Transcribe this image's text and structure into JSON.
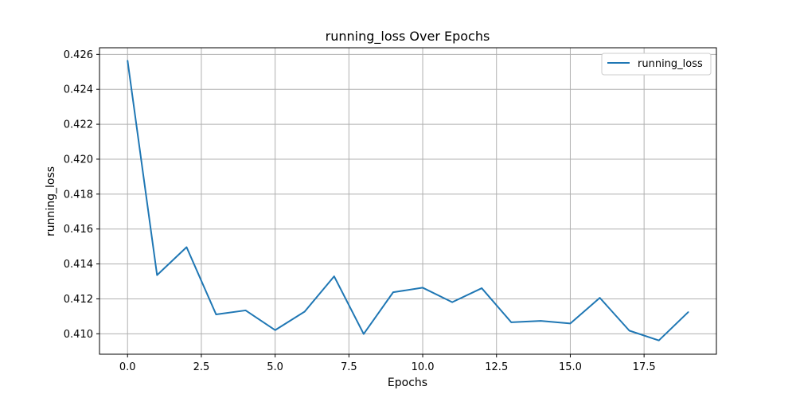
{
  "chart_data": {
    "type": "line",
    "title": "running_loss Over Epochs",
    "xlabel": "Epochs",
    "ylabel": "running_loss",
    "xlim": [
      -0.95,
      19.95
    ],
    "ylim": [
      0.40883,
      0.42638
    ],
    "xticks": [
      0.0,
      2.5,
      5.0,
      7.5,
      10.0,
      12.5,
      15.0,
      17.5
    ],
    "xtick_labels": [
      "0.0",
      "2.5",
      "5.0",
      "7.5",
      "10.0",
      "12.5",
      "15.0",
      "17.5"
    ],
    "yticks": [
      0.41,
      0.412,
      0.414,
      0.416,
      0.418,
      0.42,
      0.422,
      0.424,
      0.426
    ],
    "ytick_labels": [
      "0.410",
      "0.412",
      "0.414",
      "0.416",
      "0.418",
      "0.420",
      "0.422",
      "0.424",
      "0.426"
    ],
    "grid": true,
    "legend_position": "top-right",
    "series": [
      {
        "name": "running_loss",
        "color": "#1f77b4",
        "x": [
          0,
          1,
          2,
          3,
          4,
          5,
          6,
          7,
          8,
          9,
          10,
          11,
          12,
          13,
          14,
          15,
          16,
          17,
          18,
          19
        ],
        "values": [
          0.42565,
          0.41336,
          0.41496,
          0.41111,
          0.41134,
          0.41021,
          0.41127,
          0.41329,
          0.40999,
          0.41238,
          0.41264,
          0.41181,
          0.41261,
          0.41066,
          0.41074,
          0.41059,
          0.41206,
          0.41018,
          0.40962,
          0.41125
        ]
      }
    ]
  }
}
